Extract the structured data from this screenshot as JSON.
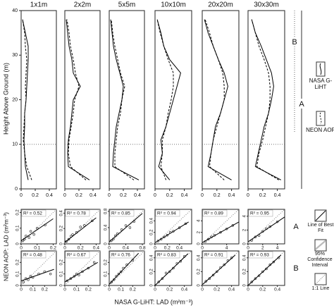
{
  "labels": {
    "y_profile": "Height Above Ground (m)",
    "y_scatter": "NEON AOP: LAD (m²m⁻³)",
    "x_scatter": "NASA G-LiHT: LAD (m²m⁻³)",
    "rows": [
      "A",
      "B"
    ]
  },
  "legend": [
    {
      "name": "NASA G-LiHT",
      "dash": "solid"
    },
    {
      "name": "NEON AOP",
      "dash": "dashed"
    }
  ],
  "scatter_legend": [
    "Line of Best Fit",
    "95% Confidence Interval",
    "1:1 Line"
  ],
  "chart_data": [
    {
      "type": "line",
      "title": "1x1m",
      "y": [
        2,
        5,
        8,
        11,
        14,
        17,
        20,
        23,
        26,
        29,
        32,
        35,
        38
      ],
      "xlim": [
        0,
        0.5
      ],
      "xticks": [
        0,
        0.2,
        0.4
      ],
      "ylim": [
        0,
        40
      ],
      "yticks": [
        0,
        10,
        20,
        30,
        40
      ],
      "hline": 10,
      "series": [
        {
          "dash": "solid",
          "values": [
            0.1,
            0.06,
            0.05,
            0.04,
            0.05,
            0.05,
            0.07,
            0.08,
            0.09,
            0.1,
            0.1,
            0.06,
            0.02
          ]
        },
        {
          "dash": "dashed",
          "values": [
            0.15,
            0.08,
            0.05,
            0.03,
            0.04,
            0.05,
            0.07,
            0.06,
            0.07,
            0.08,
            0.06,
            0.05,
            0.02
          ]
        }
      ]
    },
    {
      "type": "line",
      "title": "2x2m",
      "y": [
        2,
        5,
        8,
        11,
        14,
        17,
        20,
        23,
        26,
        29,
        32,
        35,
        38
      ],
      "xlim": [
        0,
        0.5
      ],
      "xticks": [
        0,
        0.2,
        0.4
      ],
      "ylim": [
        0,
        40
      ],
      "hline": 10,
      "series": [
        {
          "dash": "solid",
          "values": [
            0.35,
            0.05,
            0.04,
            0.05,
            0.08,
            0.1,
            0.12,
            0.22,
            0.12,
            0.1,
            0.06,
            0.04,
            0.02
          ]
        },
        {
          "dash": "dashed",
          "values": [
            0.3,
            0.08,
            0.05,
            0.06,
            0.09,
            0.12,
            0.14,
            0.2,
            0.15,
            0.12,
            0.08,
            0.06,
            0.03
          ]
        }
      ]
    },
    {
      "type": "line",
      "title": "5x5m",
      "y": [
        2,
        5,
        8,
        11,
        14,
        17,
        20,
        23,
        26,
        29,
        32,
        35,
        38
      ],
      "xlim": [
        0,
        0.5
      ],
      "xticks": [
        0,
        0.2,
        0.4
      ],
      "ylim": [
        0,
        40
      ],
      "hline": 10,
      "series": [
        {
          "dash": "solid",
          "values": [
            0.42,
            0.05,
            0.06,
            0.08,
            0.1,
            0.14,
            0.18,
            0.2,
            0.15,
            0.1,
            0.06,
            0.04,
            0.02
          ]
        },
        {
          "dash": "dashed",
          "values": [
            0.35,
            0.08,
            0.08,
            0.1,
            0.12,
            0.16,
            0.18,
            0.22,
            0.16,
            0.12,
            0.08,
            0.05,
            0.03
          ]
        }
      ]
    },
    {
      "type": "line",
      "title": "10x10m",
      "y": [
        2,
        5,
        8,
        11,
        14,
        17,
        20,
        23,
        26,
        29,
        32,
        35,
        38
      ],
      "xlim": [
        0,
        0.5
      ],
      "xticks": [
        0,
        0.2,
        0.4
      ],
      "ylim": [
        0,
        40
      ],
      "hline": 10,
      "series": [
        {
          "dash": "solid",
          "values": [
            0.2,
            0.05,
            0.1,
            0.08,
            0.15,
            0.2,
            0.25,
            0.3,
            0.35,
            0.2,
            0.12,
            0.08,
            0.03
          ]
        },
        {
          "dash": "dashed",
          "values": [
            0.15,
            0.08,
            0.1,
            0.1,
            0.15,
            0.18,
            0.22,
            0.25,
            0.25,
            0.18,
            0.12,
            0.07,
            0.03
          ]
        }
      ]
    },
    {
      "type": "line",
      "title": "20x20m",
      "y": [
        2,
        5,
        8,
        11,
        14,
        17,
        20,
        23,
        26,
        29,
        32,
        35,
        38
      ],
      "xlim": [
        0,
        0.5
      ],
      "xticks": [
        0,
        0.2,
        0.4
      ],
      "ylim": [
        0,
        40
      ],
      "hline": 10,
      "series": [
        {
          "dash": "solid",
          "values": [
            0.4,
            0.08,
            0.12,
            0.15,
            0.18,
            0.25,
            0.3,
            0.35,
            0.3,
            0.22,
            0.15,
            0.08,
            0.03
          ]
        },
        {
          "dash": "dashed",
          "values": [
            0.3,
            0.1,
            0.12,
            0.15,
            0.2,
            0.25,
            0.3,
            0.3,
            0.28,
            0.22,
            0.15,
            0.1,
            0.04
          ]
        }
      ]
    },
    {
      "type": "line",
      "title": "30x30m",
      "y": [
        2,
        5,
        8,
        11,
        14,
        17,
        20,
        23,
        26,
        29,
        32,
        35,
        38
      ],
      "xlim": [
        0,
        0.5
      ],
      "xticks": [
        0,
        0.2,
        0.4
      ],
      "ylim": [
        0,
        40
      ],
      "hline": 10,
      "series": [
        {
          "dash": "solid",
          "values": [
            0.45,
            0.1,
            0.14,
            0.18,
            0.22,
            0.28,
            0.32,
            0.35,
            0.32,
            0.25,
            0.18,
            0.1,
            0.05
          ]
        },
        {
          "dash": "dashed",
          "values": [
            0.42,
            0.12,
            0.15,
            0.2,
            0.24,
            0.28,
            0.3,
            0.3,
            0.28,
            0.22,
            0.15,
            0.1,
            0.05
          ]
        }
      ]
    },
    {
      "type": "scatter",
      "row": 0,
      "col": 0,
      "annotation": "R² = 0.52",
      "xlim": [
        0,
        0.22
      ],
      "ylim": [
        0,
        0.22
      ],
      "xticks": [
        0,
        0.1,
        0.2
      ],
      "yticks": [
        0,
        0.1,
        0.2
      ],
      "x": [
        0.01,
        0.02,
        0.03,
        0.05,
        0.06,
        0.08,
        0.1,
        0.15
      ],
      "y": [
        0.02,
        0.03,
        0.05,
        0.04,
        0.08,
        0.06,
        0.1,
        0.12
      ],
      "fit": {
        "x": [
          0,
          0.2
        ],
        "y": [
          0.02,
          0.16
        ]
      }
    },
    {
      "type": "scatter",
      "row": 0,
      "col": 1,
      "annotation": "R² = 0.78",
      "xlim": [
        0,
        0.45
      ],
      "ylim": [
        0,
        0.45
      ],
      "xticks": [
        0,
        0.2,
        0.4
      ],
      "yticks": [
        0,
        0.2,
        0.4
      ],
      "x": [
        0.02,
        0.05,
        0.08,
        0.1,
        0.15,
        0.2,
        0.25,
        0.35
      ],
      "y": [
        0.03,
        0.06,
        0.1,
        0.12,
        0.15,
        0.22,
        0.24,
        0.3
      ],
      "fit": {
        "x": [
          0,
          0.4
        ],
        "y": [
          0.02,
          0.34
        ]
      }
    },
    {
      "type": "scatter",
      "row": 0,
      "col": 2,
      "annotation": "R² = 0.85",
      "xlim": [
        0,
        0.85
      ],
      "ylim": [
        0,
        0.85
      ],
      "xticks": [
        0,
        0.4,
        0.8
      ],
      "yticks": [
        0,
        0.4,
        0.8
      ],
      "x": [
        0.05,
        0.1,
        0.15,
        0.2,
        0.3,
        0.4,
        0.5,
        0.6
      ],
      "y": [
        0.08,
        0.12,
        0.2,
        0.25,
        0.35,
        0.45,
        0.4,
        0.55
      ],
      "fit": {
        "x": [
          0,
          0.8
        ],
        "y": [
          0.05,
          0.75
        ]
      }
    },
    {
      "type": "scatter",
      "row": 0,
      "col": 3,
      "annotation": "R² = 0.94",
      "xlim": [
        0,
        0.6
      ],
      "ylim": [
        0,
        0.6
      ],
      "xticks": [
        0,
        0.2,
        0.4
      ],
      "yticks": [
        0,
        0.2,
        0.4
      ],
      "x": [
        0.05,
        0.1,
        0.15,
        0.2,
        0.25,
        0.3,
        0.4,
        0.5
      ],
      "y": [
        0.05,
        0.08,
        0.12,
        0.15,
        0.2,
        0.22,
        0.28,
        0.35
      ],
      "fit": {
        "x": [
          0,
          0.55
        ],
        "y": [
          0.02,
          0.38
        ]
      }
    },
    {
      "type": "scatter",
      "row": 0,
      "col": 4,
      "annotation": "R² = 0.89",
      "xlim": [
        0,
        6
      ],
      "ylim": [
        0,
        6
      ],
      "xticks": [
        0,
        4
      ],
      "yticks": [
        0,
        2,
        4
      ],
      "x": [
        0.5,
        1,
        1.5,
        2,
        3,
        4,
        5
      ],
      "y": [
        0.4,
        0.8,
        1.2,
        1.5,
        2,
        2.6,
        3.2
      ],
      "fit": {
        "x": [
          0,
          6
        ],
        "y": [
          0.2,
          3.8
        ]
      }
    },
    {
      "type": "scatter",
      "row": 0,
      "col": 5,
      "annotation": "R² = 0.95",
      "xlim": [
        0,
        5
      ],
      "ylim": [
        0,
        5
      ],
      "xticks": [
        0,
        2,
        4
      ],
      "yticks": [
        0,
        2,
        4
      ],
      "x": [
        0.5,
        1,
        1.5,
        2,
        2.5,
        3,
        4
      ],
      "y": [
        0.5,
        1,
        1.2,
        1.8,
        2.2,
        2.5,
        3.2
      ],
      "fit": {
        "x": [
          0,
          5
        ],
        "y": [
          0.3,
          3.9
        ]
      }
    },
    {
      "type": "scatter",
      "row": 1,
      "col": 0,
      "annotation": "R² = 0.48",
      "xlim": [
        0,
        0.3
      ],
      "ylim": [
        0,
        0.3
      ],
      "xticks": [
        0,
        0.1,
        0.2
      ],
      "yticks": [
        0,
        0.1,
        0.2
      ],
      "x": [
        0.02,
        0.04,
        0.06,
        0.08,
        0.1,
        0.15,
        0.2,
        0.25
      ],
      "y": [
        0.03,
        0.06,
        0.05,
        0.08,
        0.07,
        0.1,
        0.12,
        0.1
      ],
      "fit": {
        "x": [
          0,
          0.28
        ],
        "y": [
          0.04,
          0.14
        ]
      }
    },
    {
      "type": "scatter",
      "row": 1,
      "col": 1,
      "annotation": "R² = 0.67",
      "xlim": [
        0,
        0.3
      ],
      "ylim": [
        0,
        0.3
      ],
      "xticks": [
        0,
        0.1,
        0.2
      ],
      "yticks": [
        0,
        0.1,
        0.2
      ],
      "x": [
        0.02,
        0.05,
        0.08,
        0.1,
        0.12,
        0.15,
        0.2,
        0.25
      ],
      "y": [
        0.04,
        0.06,
        0.08,
        0.1,
        0.09,
        0.12,
        0.15,
        0.2
      ],
      "fit": {
        "x": [
          0,
          0.28
        ],
        "y": [
          0.03,
          0.2
        ]
      }
    },
    {
      "type": "scatter",
      "row": 1,
      "col": 2,
      "annotation": "R² = 0.76",
      "xlim": [
        0,
        0.3
      ],
      "ylim": [
        0,
        0.3
      ],
      "xticks": [
        0,
        0.1,
        0.2
      ],
      "yticks": [
        0,
        0.1,
        0.2
      ],
      "x": [
        0.02,
        0.04,
        0.06,
        0.08,
        0.1,
        0.12,
        0.15,
        0.2
      ],
      "y": [
        0.03,
        0.05,
        0.08,
        0.1,
        0.12,
        0.15,
        0.18,
        0.22
      ],
      "fit": {
        "x": [
          0,
          0.25
        ],
        "y": [
          0.01,
          0.28
        ]
      }
    },
    {
      "type": "scatter",
      "row": 1,
      "col": 3,
      "annotation": "R² = 0.83",
      "xlim": [
        0,
        0.5
      ],
      "ylim": [
        0,
        0.5
      ],
      "xticks": [
        0,
        0.2,
        0.4
      ],
      "yticks": [
        0,
        0.2,
        0.4
      ],
      "x": [
        0.05,
        0.1,
        0.15,
        0.2,
        0.25,
        0.3,
        0.35,
        0.4
      ],
      "y": [
        0.05,
        0.1,
        0.18,
        0.2,
        0.25,
        0.32,
        0.35,
        0.42
      ],
      "fit": {
        "x": [
          0,
          0.45
        ],
        "y": [
          0,
          0.46
        ]
      }
    },
    {
      "type": "scatter",
      "row": 1,
      "col": 4,
      "annotation": "R² = 0.91",
      "xlim": [
        0,
        0.5
      ],
      "ylim": [
        0,
        0.5
      ],
      "xticks": [
        0,
        0.2,
        0.4
      ],
      "yticks": [
        0,
        0.2,
        0.4
      ],
      "x": [
        0.05,
        0.1,
        0.15,
        0.2,
        0.25,
        0.3,
        0.35,
        0.4
      ],
      "y": [
        0.06,
        0.1,
        0.15,
        0.2,
        0.26,
        0.3,
        0.36,
        0.4
      ],
      "fit": {
        "x": [
          0,
          0.45
        ],
        "y": [
          0.01,
          0.44
        ]
      }
    },
    {
      "type": "scatter",
      "row": 1,
      "col": 5,
      "annotation": "R² = 0.93",
      "xlim": [
        0,
        0.5
      ],
      "ylim": [
        0,
        0.5
      ],
      "xticks": [
        0,
        0.2,
        0.4
      ],
      "yticks": [
        0,
        0.2,
        0.4
      ],
      "x": [
        0.05,
        0.1,
        0.15,
        0.2,
        0.25,
        0.3,
        0.35,
        0.42
      ],
      "y": [
        0.05,
        0.1,
        0.14,
        0.2,
        0.24,
        0.3,
        0.34,
        0.4
      ],
      "fit": {
        "x": [
          0,
          0.45
        ],
        "y": [
          0,
          0.44
        ]
      }
    }
  ]
}
